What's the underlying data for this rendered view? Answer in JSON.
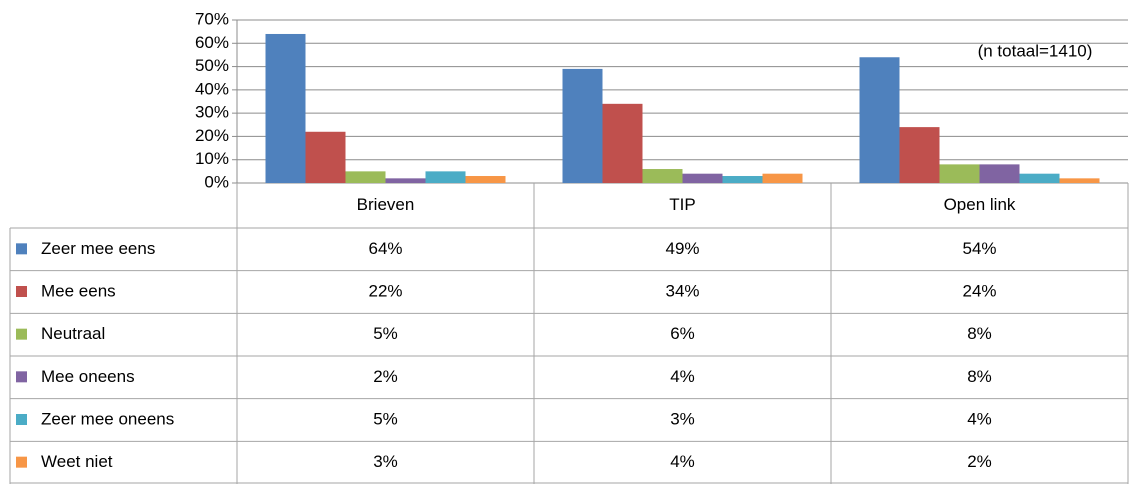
{
  "chart_data": {
    "type": "bar",
    "annotation": "(n totaal=1410)",
    "categories": [
      "Brieven",
      "TIP",
      "Open link"
    ],
    "series": [
      {
        "name": "Zeer mee eens",
        "color": "#4f81bd",
        "values": [
          64,
          49,
          54
        ],
        "value_labels": [
          "64%",
          "49%",
          "54%"
        ]
      },
      {
        "name": "Mee eens",
        "color": "#c0504d",
        "values": [
          22,
          34,
          24
        ],
        "value_labels": [
          "22%",
          "34%",
          "24%"
        ]
      },
      {
        "name": "Neutraal",
        "color": "#9bbb59",
        "values": [
          5,
          6,
          8
        ],
        "value_labels": [
          "5%",
          "6%",
          "8%"
        ]
      },
      {
        "name": "Mee oneens",
        "color": "#8064a2",
        "values": [
          2,
          4,
          8
        ],
        "value_labels": [
          "2%",
          "4%",
          "8%"
        ]
      },
      {
        "name": "Zeer mee oneens",
        "color": "#4bacc6",
        "values": [
          5,
          3,
          4
        ],
        "value_labels": [
          "5%",
          "3%",
          "4%"
        ]
      },
      {
        "name": "Weet niet",
        "color": "#f79646",
        "values": [
          3,
          4,
          2
        ],
        "value_labels": [
          "3%",
          "4%",
          "2%"
        ]
      }
    ],
    "ylim": [
      0,
      70
    ],
    "yticks": [
      {
        "value": 0,
        "label": "0%"
      },
      {
        "value": 10,
        "label": "10%"
      },
      {
        "value": 20,
        "label": "20%"
      },
      {
        "value": 30,
        "label": "30%"
      },
      {
        "value": 40,
        "label": "40%"
      },
      {
        "value": 50,
        "label": "50%"
      },
      {
        "value": 60,
        "label": "60%"
      },
      {
        "value": 70,
        "label": "70%"
      }
    ],
    "grid": true
  }
}
